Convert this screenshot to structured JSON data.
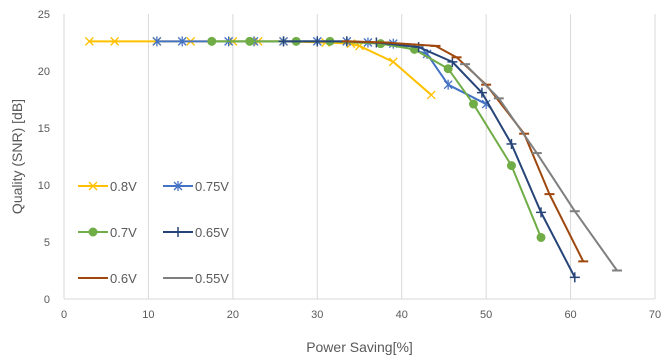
{
  "chart_data": {
    "type": "line",
    "title": "",
    "xlabel": "Power Saving[%]",
    "ylabel": "Quality (SNR) [dB]",
    "xlim": [
      0,
      70
    ],
    "ylim": [
      0,
      25
    ],
    "xticks": [
      0,
      10,
      20,
      30,
      40,
      50,
      60,
      70
    ],
    "yticks": [
      0,
      5,
      10,
      15,
      20,
      25
    ],
    "grid": "vertical",
    "legend_position": "lower-left",
    "series": [
      {
        "name": "0.8V",
        "color": "#FFC000",
        "marker": "x",
        "x": [
          3,
          6,
          11,
          15,
          20,
          23,
          26,
          31,
          34,
          35,
          39,
          43.5
        ],
        "y": [
          22.6,
          22.6,
          22.6,
          22.6,
          22.6,
          22.6,
          22.6,
          22.5,
          22.4,
          22.2,
          20.8,
          17.9
        ]
      },
      {
        "name": "0.75V",
        "color": "#4472C4",
        "marker": "asterisk",
        "x": [
          11,
          14,
          19.5,
          22.5,
          26,
          30,
          33.5,
          36,
          39,
          43,
          45.5,
          50
        ],
        "y": [
          22.6,
          22.6,
          22.6,
          22.6,
          22.6,
          22.6,
          22.6,
          22.5,
          22.4,
          21.5,
          18.8,
          17.1
        ]
      },
      {
        "name": "0.7V",
        "color": "#70AD47",
        "marker": "circle",
        "x": [
          17.5,
          22,
          27.5,
          31.5,
          37.5,
          41.5,
          45.5,
          48.5,
          53,
          56.5
        ],
        "y": [
          22.6,
          22.6,
          22.6,
          22.6,
          22.4,
          21.9,
          20.2,
          17.1,
          11.7,
          5.4
        ]
      },
      {
        "name": "0.65V",
        "color": "#264478",
        "marker": "plus",
        "x": [
          26,
          30,
          33.5,
          37,
          42,
          46,
          49.5,
          53,
          56.5,
          60.5
        ],
        "y": [
          22.6,
          22.6,
          22.6,
          22.5,
          22.1,
          20.8,
          18.1,
          13.6,
          7.6,
          1.9
        ]
      },
      {
        "name": "0.6V",
        "color": "#9E480E",
        "marker": "dash",
        "x": [
          33.5,
          38,
          44,
          46.5,
          50,
          54.5,
          57.5,
          61.5
        ],
        "y": [
          22.6,
          22.5,
          22.2,
          21.2,
          18.8,
          14.5,
          9.2,
          3.3
        ]
      },
      {
        "name": "0.55V",
        "color": "#7F7F7F",
        "marker": "dash",
        "x": [
          47.5,
          51.5,
          56,
          60.5,
          65.5
        ],
        "y": [
          20.6,
          17.6,
          12.8,
          7.7,
          2.5
        ]
      }
    ]
  }
}
